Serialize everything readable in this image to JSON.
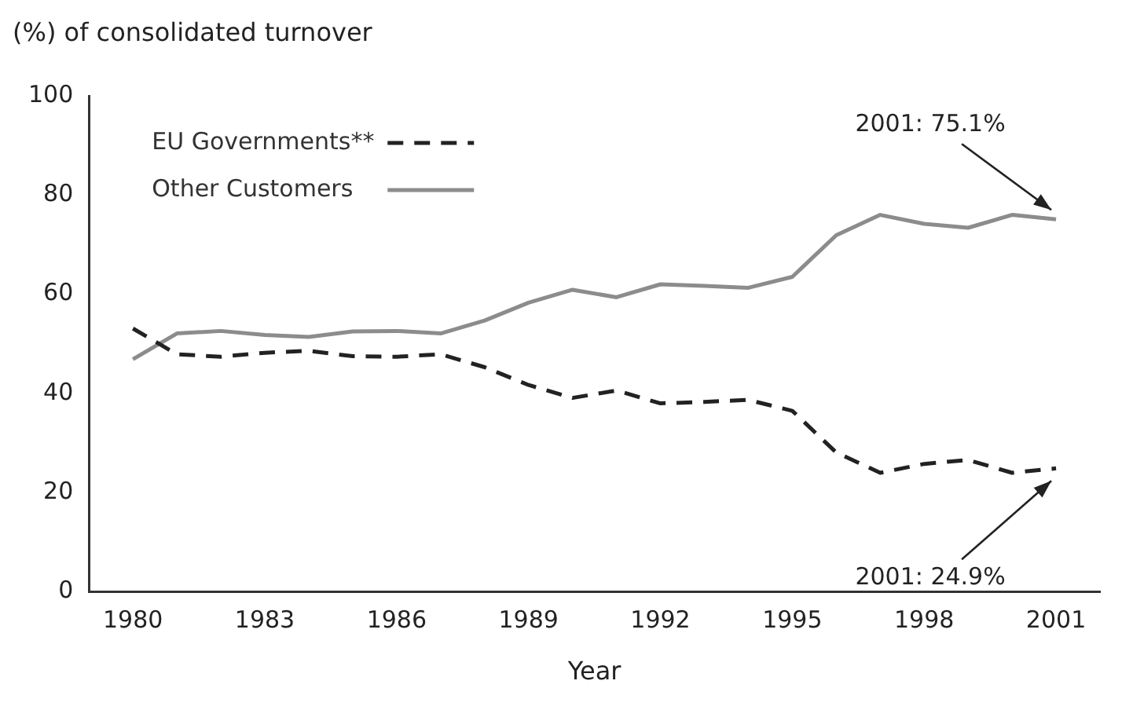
{
  "chart_data": {
    "type": "line",
    "xlabel": "Year",
    "ylabel": "(%) of consolidated turnover",
    "x": [
      1980,
      1981,
      1982,
      1983,
      1984,
      1985,
      1986,
      1987,
      1988,
      1989,
      1990,
      1991,
      1992,
      1993,
      1994,
      1995,
      1996,
      1997,
      1998,
      1999,
      2000,
      2001
    ],
    "series": [
      {
        "name": "EU Governments**",
        "color": "#222222",
        "line_style": "dashed",
        "values": [
          53.1,
          47.9,
          47.4,
          48.2,
          48.6,
          47.5,
          47.4,
          47.9,
          45.3,
          41.7,
          39.1,
          40.6,
          38.0,
          38.3,
          38.7,
          36.5,
          28.1,
          24.0,
          25.8,
          26.6,
          24.0,
          24.9
        ]
      },
      {
        "name": "Other Customers",
        "color": "#8c8c8c",
        "line_style": "solid",
        "values": [
          46.9,
          52.1,
          52.6,
          51.8,
          51.4,
          52.5,
          52.6,
          52.1,
          54.7,
          58.3,
          60.9,
          59.4,
          62.0,
          61.7,
          61.3,
          63.5,
          71.9,
          76.0,
          74.2,
          73.4,
          76.0,
          75.1
        ]
      }
    ],
    "xlim": [
      1979,
      2002
    ],
    "xticks": [
      1980,
      1983,
      1986,
      1989,
      1992,
      1995,
      1998,
      2001
    ],
    "ylim": [
      0,
      100
    ],
    "yticks": [
      0,
      20,
      40,
      60,
      80,
      100
    ],
    "grid": false,
    "legend": "top left",
    "marker": "none",
    "annotations": [
      {
        "text": "2001: 75.1%",
        "x": 2001,
        "y": 75.1
      },
      {
        "text": "2001: 24.9%",
        "x": 2001,
        "y": 24.9
      }
    ]
  }
}
